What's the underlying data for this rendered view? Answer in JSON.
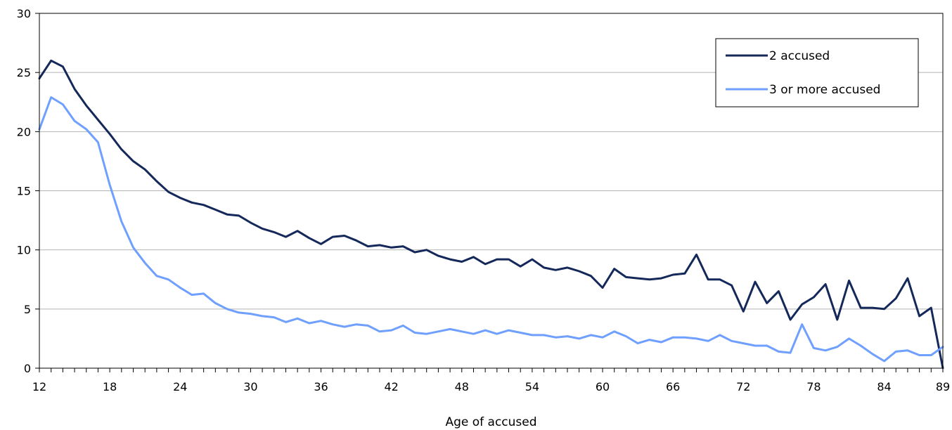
{
  "chart_data": {
    "type": "line",
    "xlabel": "Age of accused",
    "ylabel": "",
    "x": [
      12,
      13,
      14,
      15,
      16,
      17,
      18,
      19,
      20,
      21,
      22,
      23,
      24,
      25,
      26,
      27,
      28,
      29,
      30,
      31,
      32,
      33,
      34,
      35,
      36,
      37,
      38,
      39,
      40,
      41,
      42,
      43,
      44,
      45,
      46,
      47,
      48,
      49,
      50,
      51,
      52,
      53,
      54,
      55,
      56,
      57,
      58,
      59,
      60,
      61,
      62,
      63,
      64,
      65,
      66,
      67,
      68,
      69,
      70,
      71,
      72,
      73,
      74,
      75,
      76,
      77,
      78,
      79,
      80,
      81,
      82,
      83,
      84,
      85,
      86,
      87,
      88,
      89
    ],
    "x_tick_labels": [
      "12",
      "18",
      "24",
      "30",
      "36",
      "42",
      "48",
      "54",
      "60",
      "66",
      "72",
      "78",
      "84",
      "89"
    ],
    "xlim": [
      12,
      89
    ],
    "ylim": [
      0,
      30
    ],
    "y_ticks": [
      0,
      5,
      10,
      15,
      20,
      25,
      30
    ],
    "grid": "horizontal",
    "legend_position": "top-right",
    "series": [
      {
        "name": "2 accused",
        "color": "#14285a",
        "values": [
          24.5,
          26.0,
          25.5,
          23.6,
          22.2,
          21.0,
          19.8,
          18.5,
          17.5,
          16.8,
          15.8,
          14.9,
          14.4,
          14.0,
          13.8,
          13.4,
          13.0,
          12.9,
          12.3,
          11.8,
          11.5,
          11.1,
          11.6,
          11.0,
          10.5,
          11.1,
          11.2,
          10.8,
          10.3,
          10.4,
          10.2,
          10.3,
          9.8,
          10.0,
          9.5,
          9.2,
          9.0,
          9.4,
          8.8,
          9.2,
          9.2,
          8.6,
          9.2,
          8.5,
          8.3,
          8.5,
          8.2,
          7.8,
          6.8,
          8.4,
          7.7,
          7.6,
          7.5,
          7.6,
          7.9,
          8.0,
          9.6,
          7.5,
          7.5,
          7.0,
          4.8,
          7.3,
          5.5,
          6.5,
          4.1,
          5.4,
          6.0,
          7.1,
          4.1,
          7.4,
          5.1,
          5.1,
          5.0,
          5.9,
          7.6,
          4.4,
          5.1,
          0.0
        ]
      },
      {
        "name": "3 or more accused",
        "color": "#6f9fff",
        "values": [
          20.2,
          22.9,
          22.3,
          20.9,
          20.2,
          19.1,
          15.5,
          12.4,
          10.2,
          8.9,
          7.8,
          7.5,
          6.8,
          6.2,
          6.3,
          5.5,
          5.0,
          4.7,
          4.6,
          4.4,
          4.3,
          3.9,
          4.2,
          3.8,
          4.0,
          3.7,
          3.5,
          3.7,
          3.6,
          3.1,
          3.2,
          3.6,
          3.0,
          2.9,
          3.1,
          3.3,
          3.1,
          2.9,
          3.2,
          2.9,
          3.2,
          3.0,
          2.8,
          2.8,
          2.6,
          2.7,
          2.5,
          2.8,
          2.6,
          3.1,
          2.7,
          2.1,
          2.4,
          2.2,
          2.6,
          2.6,
          2.5,
          2.3,
          2.8,
          2.3,
          2.1,
          1.9,
          1.9,
          1.4,
          1.3,
          3.7,
          1.7,
          1.5,
          1.8,
          2.5,
          1.9,
          1.2,
          0.6,
          1.4,
          1.5,
          1.1,
          1.1,
          1.8
        ]
      }
    ]
  }
}
